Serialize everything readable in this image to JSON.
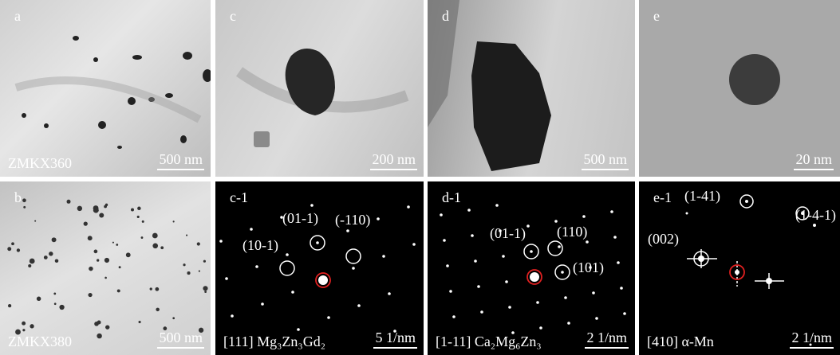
{
  "panels": [
    {
      "id": "a",
      "caption": "ZMKX360",
      "scale_bar": "500 nm"
    },
    {
      "id": "c",
      "scale_bar": "200 nm"
    },
    {
      "id": "d",
      "scale_bar": "500 nm"
    },
    {
      "id": "e",
      "scale_bar": "20 nm"
    },
    {
      "id": "b",
      "caption": "ZMKX380",
      "scale_bar": "500 nm"
    },
    {
      "id": "c-1",
      "caption": "[111] Mg₃Zn₃Gd₂",
      "scale_bar": "5 1/nm",
      "labels": [
        "(01-1)",
        "(10-1)",
        "(-110)"
      ]
    },
    {
      "id": "d-1",
      "caption": "[1-11] Ca₂Mg₆Zn₃",
      "scale_bar": "2 1/nm",
      "labels": [
        "(01-1)",
        "(110)",
        "(101)"
      ]
    },
    {
      "id": "e-1",
      "caption": "[410] α-Mn",
      "scale_bar": "2 1/nm",
      "labels": [
        "(1-41)",
        "(1-4-1)",
        "(002)"
      ]
    }
  ]
}
